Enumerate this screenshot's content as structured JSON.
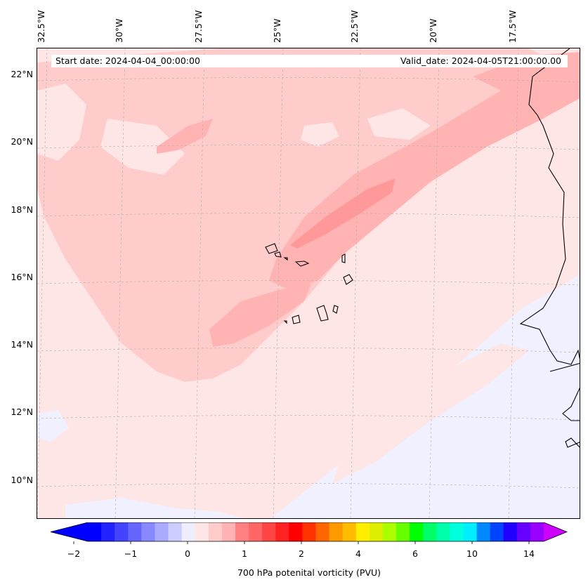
{
  "map": {
    "start_date": "Start date: 2024-04-04_00:00:00",
    "valid_date": "Valid_date: 2024-04-05T21:00:00.00",
    "longitude_labels": [
      "32.5°W",
      "30°W",
      "27.5°W",
      "25°W",
      "22.5°W",
      "20°W",
      "17.5°W"
    ],
    "latitude_labels": [
      "22°N",
      "20°N",
      "18°N",
      "16°N",
      "14°N",
      "12°N",
      "10°N"
    ],
    "fill_colors": {
      "background": "#ffe6e6",
      "pale_blue": "#f0f0ff",
      "light_pink": "#ffcccc",
      "pink": "#ffb3b3",
      "rose": "#ff9999",
      "deep_rose": "#ff8080",
      "coastline": "#000000"
    }
  },
  "colorbar": {
    "title": "700 hPa potenital vorticity (PVU)",
    "tick_labels": [
      "−2",
      "−1",
      "0",
      "1",
      "2",
      "4",
      "6",
      "10",
      "14"
    ],
    "colors": [
      "#0000ff",
      "#2222ff",
      "#4444ff",
      "#6666ff",
      "#8888ff",
      "#aaaaff",
      "#ccccff",
      "#eeeeff",
      "#ffe6e6",
      "#ffcccc",
      "#ffb3b3",
      "#ff8080",
      "#ff6666",
      "#ff4444",
      "#ff2222",
      "#ff0000",
      "#ff3300",
      "#ff6600",
      "#ff9900",
      "#ffbb00",
      "#ffee00",
      "#ddee00",
      "#aaff00",
      "#66ff00",
      "#00ff00",
      "#00ff66",
      "#00ffaa",
      "#00ffdd",
      "#00eeff",
      "#0088ff",
      "#0044ff",
      "#2200ff",
      "#6600ff",
      "#9900ff"
    ],
    "under_color": "#0000ff",
    "over_color": "#cc00ff"
  }
}
